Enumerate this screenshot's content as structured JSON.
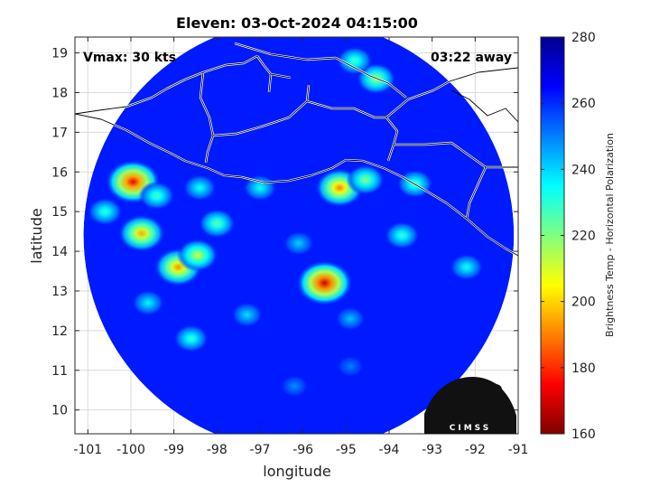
{
  "title": "Eleven: 03-Oct-2024 04:15:00",
  "vmax_label": "Vmax: 30 kts",
  "time_away_label": "03:22 away",
  "xlabel": "longitude",
  "ylabel": "latitude",
  "colorbar_label": "Brightness Temp - Horizontal Polarization",
  "logo_text": "CIMSS",
  "chart_data": {
    "type": "heatmap",
    "title": "Eleven: 03-Oct-2024 04:15:00",
    "xlabel": "longitude",
    "ylabel": "latitude",
    "xlim": [
      -101.3,
      -91
    ],
    "ylim": [
      9.4,
      19.4
    ],
    "xticks": [
      -101,
      -100,
      -99,
      -98,
      -97,
      -96,
      -95,
      -94,
      -93,
      -92,
      -91
    ],
    "yticks": [
      10,
      11,
      12,
      13,
      14,
      15,
      16,
      17,
      18,
      19
    ],
    "grid": true,
    "swath": {
      "shape": "circle",
      "center_lon": -96.1,
      "center_lat": 14.4,
      "radius_deg": 5.0
    },
    "background_temp": 262,
    "features": [
      {
        "lon": -95.5,
        "lat": 13.2,
        "min_temp": 168
      },
      {
        "lon": -99.95,
        "lat": 15.75,
        "min_temp": 172
      },
      {
        "lon": -99.75,
        "lat": 14.45,
        "min_temp": 195
      },
      {
        "lon": -98.9,
        "lat": 13.6,
        "min_temp": 192
      },
      {
        "lon": -98.45,
        "lat": 13.9,
        "min_temp": 210
      },
      {
        "lon": -95.15,
        "lat": 15.6,
        "min_temp": 190
      },
      {
        "lon": -94.3,
        "lat": 18.35,
        "min_temp": 215
      },
      {
        "lon": -94.8,
        "lat": 18.8,
        "min_temp": 225
      },
      {
        "lon": -98.0,
        "lat": 14.7,
        "min_temp": 222
      },
      {
        "lon": -99.4,
        "lat": 15.4,
        "min_temp": 225
      },
      {
        "lon": -98.4,
        "lat": 15.6,
        "min_temp": 232
      },
      {
        "lon": -97.0,
        "lat": 15.6,
        "min_temp": 232
      },
      {
        "lon": -94.55,
        "lat": 15.8,
        "min_temp": 218
      },
      {
        "lon": -93.4,
        "lat": 15.7,
        "min_temp": 225
      },
      {
        "lon": -93.7,
        "lat": 14.4,
        "min_temp": 228
      },
      {
        "lon": -92.2,
        "lat": 13.6,
        "min_temp": 232
      },
      {
        "lon": -100.6,
        "lat": 15.0,
        "min_temp": 228
      },
      {
        "lon": -99.6,
        "lat": 12.7,
        "min_temp": 235
      },
      {
        "lon": -98.6,
        "lat": 11.8,
        "min_temp": 228
      },
      {
        "lon": -97.3,
        "lat": 12.4,
        "min_temp": 238
      },
      {
        "lon": -96.1,
        "lat": 14.2,
        "min_temp": 240
      },
      {
        "lon": -94.9,
        "lat": 12.3,
        "min_temp": 242
      },
      {
        "lon": -96.2,
        "lat": 10.6,
        "min_temp": 248
      },
      {
        "lon": -94.9,
        "lat": 11.1,
        "min_temp": 250
      }
    ],
    "colorbar": {
      "range": [
        160,
        280
      ],
      "ticks": [
        160,
        180,
        200,
        220,
        240,
        260,
        280
      ],
      "label": "Brightness Temp - Horizontal Polarization"
    }
  },
  "colors": {
    "colormap_low_to_high": [
      "#800000",
      "#ff0000",
      "#ff8000",
      "#ffff00",
      "#80ff80",
      "#00ffff",
      "#0080ff",
      "#0000ff",
      "#00008f"
    ],
    "coastline": "#ffffff",
    "borders": "#000000",
    "grid": "#d9d9d9"
  }
}
